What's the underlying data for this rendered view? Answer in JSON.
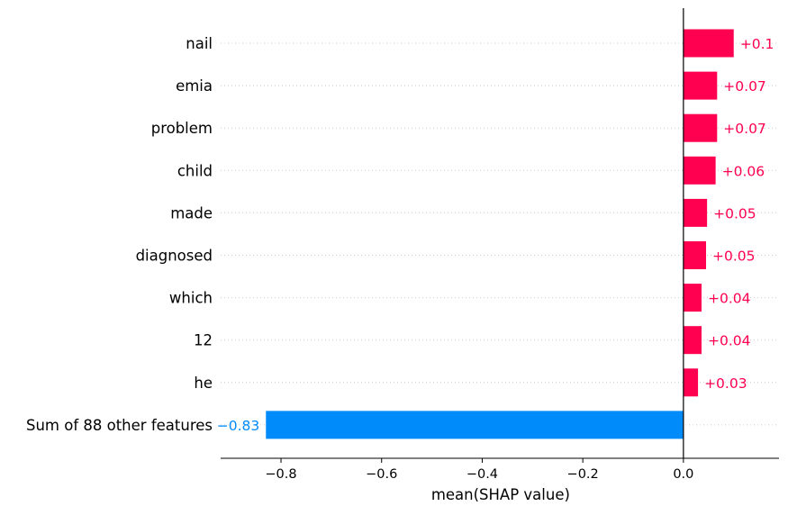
{
  "chart_data": {
    "type": "bar",
    "orientation": "horizontal",
    "categories": [
      "nail",
      "emia",
      "problem",
      "child",
      "made",
      "diagnosed",
      "which",
      "12",
      "he",
      "Sum of 88 other features"
    ],
    "values": [
      0.1,
      0.067,
      0.067,
      0.064,
      0.047,
      0.045,
      0.036,
      0.036,
      0.029,
      -0.83
    ],
    "value_labels": [
      "+0.1",
      "+0.07",
      "+0.07",
      "+0.06",
      "+0.05",
      "+0.05",
      "+0.04",
      "+0.04",
      "+0.03",
      "−0.83"
    ],
    "xlabel": "mean(SHAP value)",
    "xlim": [
      -0.92,
      0.19
    ],
    "xticks": [
      -0.8,
      -0.6,
      -0.4,
      -0.2,
      0.0
    ],
    "xtick_labels": [
      "−0.8",
      "−0.6",
      "−0.4",
      "−0.2",
      "0.0"
    ],
    "grid": "dotted horizontal lines per row",
    "legend": "none",
    "colors": {
      "positive": "#ff0051",
      "negative": "#008bfb",
      "axis": "#000000",
      "grid": "#cccccc",
      "text": "#000000"
    }
  }
}
